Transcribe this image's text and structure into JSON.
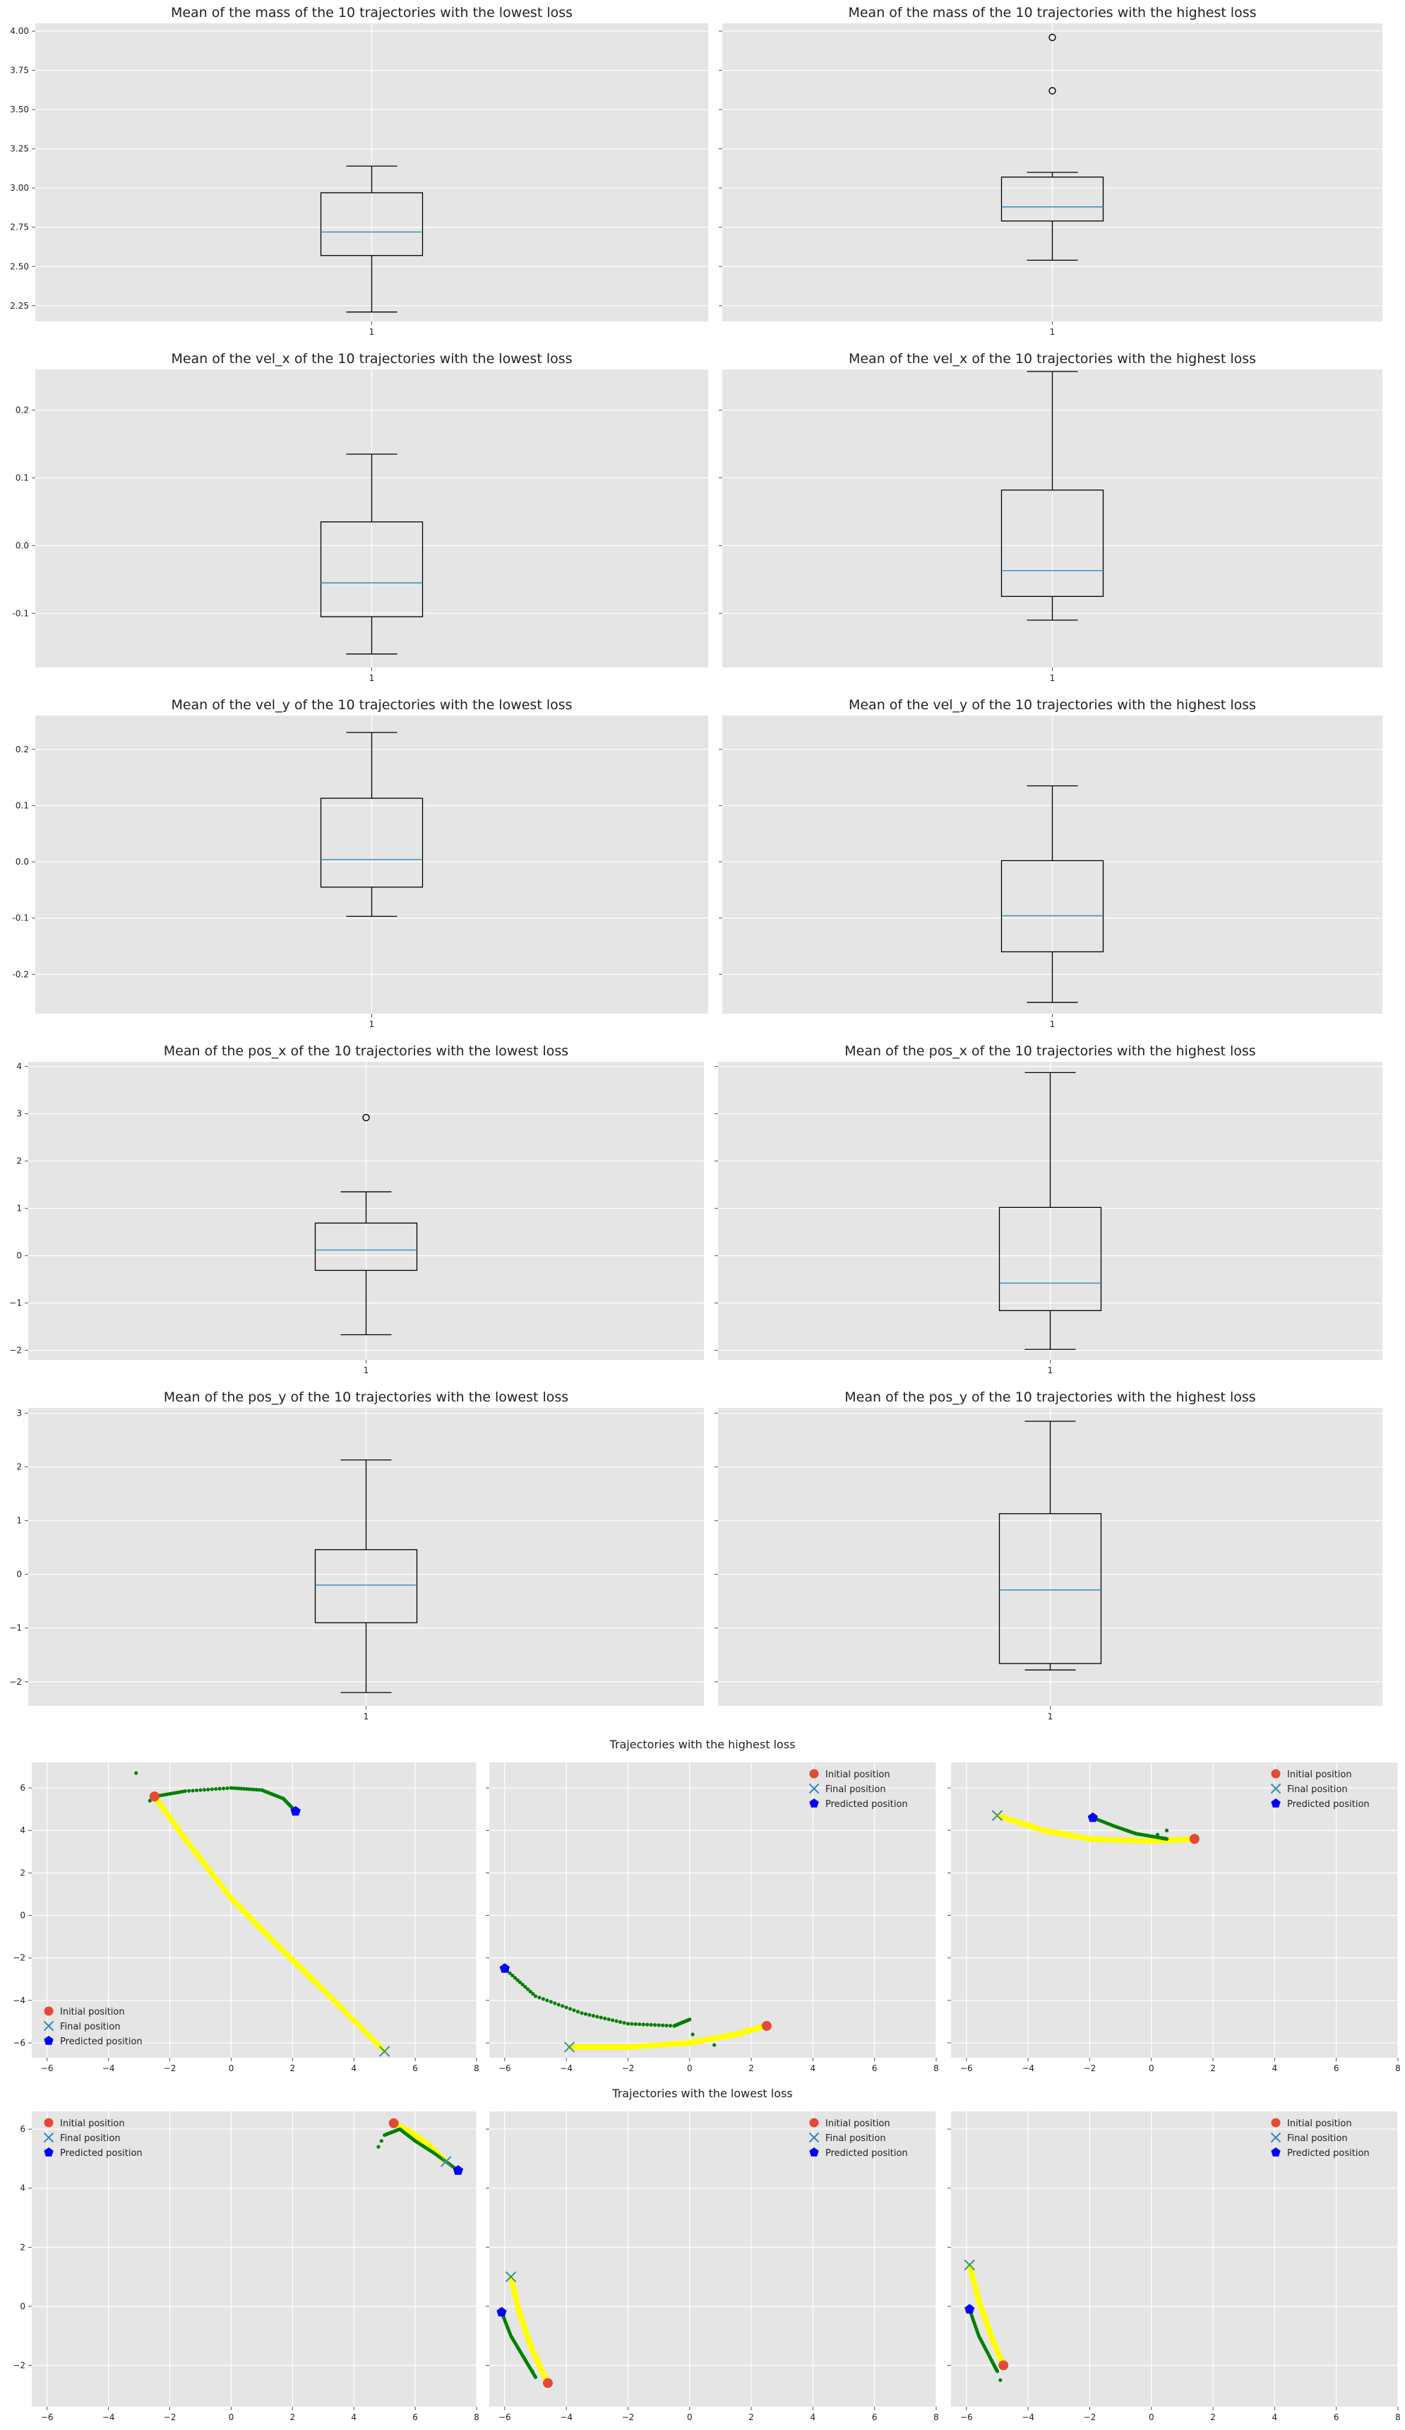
{
  "colors": {
    "panel_bg": "#e5e5e5",
    "grid": "#ffffff",
    "box": "#000000",
    "median": "#348abd",
    "initial": "#e24a33",
    "final": "#348abd",
    "predicted": "#0000ff",
    "true_path": "#ffff00",
    "predicted_path": "#008000"
  },
  "sections": {
    "highest_title": "Trajectories with the highest loss",
    "lowest_title": "Trajectories with the lowest loss"
  },
  "chart_data": [
    {
      "type": "box",
      "title": "Mean of the mass of the 10 trajectories with the lowest loss",
      "categories": [
        "1"
      ],
      "stats": {
        "whislo": 2.21,
        "q1": 2.57,
        "med": 2.72,
        "q3": 2.97,
        "whishi": 3.14
      },
      "fliers": [],
      "ylim": [
        2.15,
        4.05
      ],
      "yticks": [
        2.25,
        2.5,
        2.75,
        3.0,
        3.25,
        3.5,
        3.75,
        4.0
      ],
      "ytick_labels": [
        "2.25",
        "2.50",
        "2.75",
        "3.00",
        "3.25",
        "3.50",
        "3.75",
        "4.00"
      ],
      "show_ytick_labels": true
    },
    {
      "type": "box",
      "title": "Mean of the mass of the 10 trajectories with the highest loss",
      "categories": [
        "1"
      ],
      "stats": {
        "whislo": 2.54,
        "q1": 2.79,
        "med": 2.88,
        "q3": 3.07,
        "whishi": 3.1
      },
      "fliers": [
        3.62,
        3.96
      ],
      "ylim": [
        2.15,
        4.05
      ],
      "yticks": [
        2.25,
        2.5,
        2.75,
        3.0,
        3.25,
        3.5,
        3.75,
        4.0
      ],
      "ytick_labels": [
        "2.25",
        "2.50",
        "2.75",
        "3.00",
        "3.25",
        "3.50",
        "3.75",
        "4.00"
      ],
      "show_ytick_labels": false
    },
    {
      "type": "box",
      "title": "Mean of the vel_x of the 10 trajectories with the lowest loss",
      "categories": [
        "1"
      ],
      "stats": {
        "whislo": -0.16,
        "q1": -0.105,
        "med": -0.055,
        "q3": 0.035,
        "whishi": 0.135
      },
      "fliers": [],
      "ylim": [
        -0.18,
        0.26
      ],
      "yticks": [
        -0.1,
        0.0,
        0.1,
        0.2
      ],
      "ytick_labels": [
        "-0.1",
        "0.0",
        "0.1",
        "0.2"
      ],
      "show_ytick_labels": true
    },
    {
      "type": "box",
      "title": "Mean of the vel_x of the 10 trajectories with the highest loss",
      "categories": [
        "1"
      ],
      "stats": {
        "whislo": -0.11,
        "q1": -0.075,
        "med": -0.037,
        "q3": 0.082,
        "whishi": 0.257
      },
      "fliers": [],
      "ylim": [
        -0.18,
        0.26
      ],
      "yticks": [
        -0.1,
        0.0,
        0.1,
        0.2
      ],
      "ytick_labels": [
        "-0.1",
        "0.0",
        "0.1",
        "0.2"
      ],
      "show_ytick_labels": false
    },
    {
      "type": "box",
      "title": "Mean of the vel_y of the 10 trajectories with the lowest loss",
      "categories": [
        "1"
      ],
      "stats": {
        "whislo": -0.097,
        "q1": -0.045,
        "med": 0.004,
        "q3": 0.113,
        "whishi": 0.23
      },
      "fliers": [],
      "ylim": [
        -0.27,
        0.26
      ],
      "yticks": [
        -0.2,
        -0.1,
        0.0,
        0.1,
        0.2
      ],
      "ytick_labels": [
        "-0.2",
        "-0.1",
        "0.0",
        "0.1",
        "0.2"
      ],
      "show_ytick_labels": true
    },
    {
      "type": "box",
      "title": "Mean of the vel_y of the 10 trajectories with the highest loss",
      "categories": [
        "1"
      ],
      "stats": {
        "whislo": -0.25,
        "q1": -0.16,
        "med": -0.096,
        "q3": 0.002,
        "whishi": 0.135
      },
      "fliers": [],
      "ylim": [
        -0.27,
        0.26
      ],
      "yticks": [
        -0.2,
        -0.1,
        0.0,
        0.1,
        0.2
      ],
      "ytick_labels": [
        "-0.2",
        "-0.1",
        "0.0",
        "0.1",
        "0.2"
      ],
      "show_ytick_labels": false
    },
    {
      "type": "box",
      "title": "Mean of the pos_x of the 10 trajectories with the lowest loss",
      "categories": [
        "1"
      ],
      "stats": {
        "whislo": -1.67,
        "q1": -0.31,
        "med": 0.12,
        "q3": 0.69,
        "whishi": 1.35
      },
      "fliers": [
        2.92
      ],
      "ylim": [
        -2.2,
        4.1
      ],
      "yticks": [
        -2,
        -1,
        0,
        1,
        2,
        3,
        4
      ],
      "ytick_labels": [
        "−2",
        "−1",
        "0",
        "1",
        "2",
        "3",
        "4"
      ],
      "show_ytick_labels": true
    },
    {
      "type": "box",
      "title": "Mean of the pos_x of the 10 trajectories with the highest loss",
      "categories": [
        "1"
      ],
      "stats": {
        "whislo": -1.98,
        "q1": -1.16,
        "med": -0.58,
        "q3": 1.02,
        "whishi": 3.87
      },
      "fliers": [],
      "ylim": [
        -2.2,
        4.1
      ],
      "yticks": [
        -2,
        -1,
        0,
        1,
        2,
        3,
        4
      ],
      "ytick_labels": [
        "−2",
        "−1",
        "0",
        "1",
        "2",
        "3",
        "4"
      ],
      "show_ytick_labels": false
    },
    {
      "type": "box",
      "title": "Mean of the pos_y of the 10 trajectories with the lowest loss",
      "categories": [
        "1"
      ],
      "stats": {
        "whislo": -2.2,
        "q1": -0.9,
        "med": -0.2,
        "q3": 0.46,
        "whishi": 2.13
      },
      "fliers": [],
      "ylim": [
        -2.45,
        3.1
      ],
      "yticks": [
        -2,
        -1,
        0,
        1,
        2,
        3
      ],
      "ytick_labels": [
        "−2",
        "−1",
        "0",
        "1",
        "2",
        "3"
      ],
      "show_ytick_labels": true
    },
    {
      "type": "box",
      "title": "Mean of the pos_y of the 10 trajectories with the highest loss",
      "categories": [
        "1"
      ],
      "stats": {
        "whislo": -1.78,
        "q1": -1.66,
        "med": -0.29,
        "q3": 1.13,
        "whishi": 2.85
      },
      "fliers": [],
      "ylim": [
        -2.45,
        3.1
      ],
      "yticks": [
        -2,
        -1,
        0,
        1,
        2,
        3
      ],
      "ytick_labels": [
        "−2",
        "−1",
        "0",
        "1",
        "2",
        "3"
      ],
      "show_ytick_labels": false
    },
    {
      "type": "scatter",
      "group": "highest",
      "legend_pos": "lower-left",
      "xlim": [
        -6.5,
        8
      ],
      "ylim": [
        -6.7,
        7.2
      ],
      "xticks": [
        -6,
        -4,
        -2,
        0,
        2,
        4,
        6,
        8
      ],
      "xtick_labels": [
        "−6",
        "−4",
        "−2",
        "0",
        "2",
        "4",
        "6",
        "8"
      ],
      "yticks": [
        -6,
        -4,
        -2,
        0,
        2,
        4,
        6
      ],
      "ytick_labels": [
        "−6",
        "−4",
        "−2",
        "0",
        "2",
        "4",
        "6"
      ],
      "show_ytick_labels": true,
      "initial": [
        -2.5,
        5.6
      ],
      "final": [
        5.0,
        -6.4
      ],
      "predicted": [
        2.1,
        4.9
      ],
      "true_path": [
        [
          -2.5,
          5.6
        ],
        [
          -1.5,
          3.6
        ],
        [
          0.0,
          0.8
        ],
        [
          1.5,
          -1.4
        ],
        [
          3.0,
          -3.5
        ],
        [
          5.0,
          -6.4
        ]
      ],
      "pred_path": [
        [
          -2.5,
          5.6
        ],
        [
          -1.5,
          5.85
        ],
        [
          0.0,
          6.0
        ],
        [
          1.0,
          5.9
        ],
        [
          1.7,
          5.5
        ],
        [
          2.1,
          4.9
        ]
      ],
      "pred_outliers": [
        [
          -3.1,
          6.7
        ],
        [
          -2.65,
          5.4
        ]
      ],
      "legend": [
        "Initial position",
        "Final position",
        "Predicted position"
      ]
    },
    {
      "type": "scatter",
      "group": "highest",
      "legend_pos": "upper-right",
      "xlim": [
        -6.5,
        8
      ],
      "ylim": [
        -6.7,
        7.2
      ],
      "xticks": [
        -6,
        -4,
        -2,
        0,
        2,
        4,
        6,
        8
      ],
      "xtick_labels": [
        "−6",
        "−4",
        "−2",
        "0",
        "2",
        "4",
        "6",
        "8"
      ],
      "yticks": [
        -6,
        -4,
        -2,
        0,
        2,
        4,
        6
      ],
      "ytick_labels": [
        "−6",
        "−4",
        "−2",
        "0",
        "2",
        "4",
        "6"
      ],
      "show_ytick_labels": false,
      "initial": [
        2.5,
        -5.2
      ],
      "final": [
        -3.9,
        -6.2
      ],
      "predicted": [
        -6.0,
        -2.5
      ],
      "true_path": [
        [
          -3.9,
          -6.2
        ],
        [
          -2.0,
          -6.2
        ],
        [
          0.0,
          -6.0
        ],
        [
          1.5,
          -5.6
        ],
        [
          2.5,
          -5.2
        ]
      ],
      "pred_path": [
        [
          -6.0,
          -2.5
        ],
        [
          -5.0,
          -3.8
        ],
        [
          -3.5,
          -4.6
        ],
        [
          -2.0,
          -5.1
        ],
        [
          -0.5,
          -5.2
        ],
        [
          0.0,
          -4.9
        ]
      ],
      "pred_outliers": [
        [
          0.1,
          -5.6
        ],
        [
          0.8,
          -6.1
        ]
      ],
      "legend": [
        "Initial position",
        "Final position",
        "Predicted position"
      ]
    },
    {
      "type": "scatter",
      "group": "highest",
      "legend_pos": "upper-right",
      "xlim": [
        -6.5,
        8
      ],
      "ylim": [
        -6.7,
        7.2
      ],
      "xticks": [
        -6,
        -4,
        -2,
        0,
        2,
        4,
        6,
        8
      ],
      "xtick_labels": [
        "−6",
        "−4",
        "−2",
        "0",
        "2",
        "4",
        "6",
        "8"
      ],
      "yticks": [
        -6,
        -4,
        -2,
        0,
        2,
        4,
        6
      ],
      "ytick_labels": [
        "−6",
        "−4",
        "−2",
        "0",
        "2",
        "4",
        "6"
      ],
      "show_ytick_labels": false,
      "initial": [
        1.4,
        3.6
      ],
      "final": [
        -5.0,
        4.7
      ],
      "predicted": [
        -1.9,
        4.6
      ],
      "true_path": [
        [
          -5.0,
          4.7
        ],
        [
          -3.5,
          4.0
        ],
        [
          -2.0,
          3.6
        ],
        [
          0.0,
          3.5
        ],
        [
          1.4,
          3.6
        ]
      ],
      "pred_path": [
        [
          -1.9,
          4.6
        ],
        [
          -1.2,
          4.2
        ],
        [
          -0.5,
          3.85
        ],
        [
          0.3,
          3.65
        ],
        [
          0.5,
          3.6
        ]
      ],
      "pred_outliers": [
        [
          0.5,
          4.0
        ],
        [
          0.2,
          3.8
        ]
      ],
      "legend": [
        "Initial position",
        "Final position",
        "Predicted position"
      ]
    },
    {
      "type": "scatter",
      "group": "lowest",
      "legend_pos": "upper-left",
      "xlim": [
        -6.5,
        8
      ],
      "ylim": [
        -3.4,
        6.6
      ],
      "xticks": [
        -6,
        -4,
        -2,
        0,
        2,
        4,
        6,
        8
      ],
      "xtick_labels": [
        "−6",
        "−4",
        "−2",
        "0",
        "2",
        "4",
        "6",
        "8"
      ],
      "yticks": [
        -2,
        0,
        2,
        4,
        6
      ],
      "ytick_labels": [
        "−2",
        "0",
        "2",
        "4",
        "6"
      ],
      "show_ytick_labels": true,
      "initial": [
        5.3,
        6.2
      ],
      "final": [
        7.0,
        4.9
      ],
      "predicted": [
        7.4,
        4.6
      ],
      "true_path": [
        [
          5.3,
          6.2
        ],
        [
          6.0,
          5.8
        ],
        [
          6.5,
          5.4
        ],
        [
          7.0,
          4.9
        ]
      ],
      "pred_path": [
        [
          5.0,
          5.8
        ],
        [
          5.5,
          6.0
        ],
        [
          6.0,
          5.6
        ],
        [
          6.6,
          5.2
        ],
        [
          7.4,
          4.6
        ]
      ],
      "pred_outliers": [
        [
          4.8,
          5.4
        ],
        [
          4.9,
          5.6
        ]
      ],
      "legend": [
        "Initial position",
        "Final position",
        "Predicted position"
      ]
    },
    {
      "type": "scatter",
      "group": "lowest",
      "legend_pos": "upper-right",
      "xlim": [
        -6.5,
        8
      ],
      "ylim": [
        -3.4,
        6.6
      ],
      "xticks": [
        -6,
        -4,
        -2,
        0,
        2,
        4,
        6,
        8
      ],
      "xtick_labels": [
        "−6",
        "−4",
        "−2",
        "0",
        "2",
        "4",
        "6",
        "8"
      ],
      "yticks": [
        -2,
        0,
        2,
        4,
        6
      ],
      "ytick_labels": [
        "−2",
        "0",
        "2",
        "4",
        "6"
      ],
      "show_ytick_labels": false,
      "initial": [
        -4.6,
        -2.6
      ],
      "final": [
        -5.8,
        1.0
      ],
      "predicted": [
        -6.1,
        -0.2
      ],
      "true_path": [
        [
          -5.8,
          1.0
        ],
        [
          -5.5,
          -0.3
        ],
        [
          -5.1,
          -1.5
        ],
        [
          -4.6,
          -2.6
        ]
      ],
      "pred_path": [
        [
          -6.1,
          -0.2
        ],
        [
          -5.8,
          -1.0
        ],
        [
          -5.4,
          -1.7
        ],
        [
          -5.0,
          -2.4
        ]
      ],
      "pred_outliers": [
        [
          -5.1,
          -2.2
        ]
      ],
      "legend": [
        "Initial position",
        "Final position",
        "Predicted position"
      ]
    },
    {
      "type": "scatter",
      "group": "lowest",
      "legend_pos": "upper-right",
      "xlim": [
        -6.5,
        8
      ],
      "ylim": [
        -3.4,
        6.6
      ],
      "xticks": [
        -6,
        -4,
        -2,
        0,
        2,
        4,
        6,
        8
      ],
      "xtick_labels": [
        "−6",
        "−4",
        "−2",
        "0",
        "2",
        "4",
        "6",
        "8"
      ],
      "yticks": [
        -2,
        0,
        2,
        4,
        6
      ],
      "ytick_labels": [
        "−2",
        "0",
        "2",
        "4",
        "6"
      ],
      "show_ytick_labels": false,
      "initial": [
        -4.8,
        -2.0
      ],
      "final": [
        -5.9,
        1.4
      ],
      "predicted": [
        -5.9,
        -0.1
      ],
      "true_path": [
        [
          -5.9,
          1.4
        ],
        [
          -5.6,
          0.2
        ],
        [
          -5.2,
          -1.0
        ],
        [
          -4.8,
          -2.0
        ]
      ],
      "pred_path": [
        [
          -5.9,
          -0.1
        ],
        [
          -5.6,
          -1.0
        ],
        [
          -5.2,
          -1.8
        ],
        [
          -5.0,
          -2.2
        ]
      ],
      "pred_outliers": [
        [
          -4.9,
          -2.5
        ]
      ],
      "legend": [
        "Initial position",
        "Final position",
        "Predicted position"
      ]
    }
  ]
}
